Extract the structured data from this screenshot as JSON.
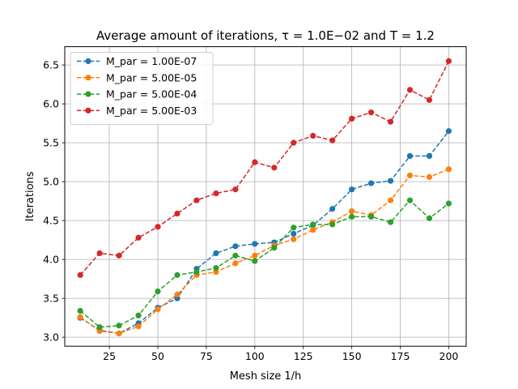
{
  "chart_data": {
    "type": "line",
    "title": "Average amount of iterations, τ = 1.0E−02 and T = 1.2",
    "xlabel": "Mesh size 1/h",
    "ylabel": "Iterations",
    "xlim": [
      2,
      209
    ],
    "ylim": [
      2.885,
      6.735
    ],
    "xticks": [
      25,
      50,
      75,
      100,
      125,
      150,
      175,
      200
    ],
    "yticks": [
      3.0,
      3.5,
      4.0,
      4.5,
      5.0,
      5.5,
      6.0,
      6.5
    ],
    "grid": true,
    "legend_position": "top-left",
    "x": [
      10,
      20,
      30,
      40,
      50,
      60,
      70,
      80,
      90,
      100,
      110,
      120,
      130,
      140,
      150,
      160,
      170,
      180,
      190,
      200
    ],
    "series": [
      {
        "name": "M_par = 1.00E-07",
        "color": "#1f77b4",
        "values": [
          3.25,
          3.09,
          3.05,
          3.18,
          3.38,
          3.5,
          3.88,
          4.08,
          4.17,
          4.2,
          4.22,
          4.33,
          4.44,
          4.65,
          4.9,
          4.98,
          5.01,
          5.33,
          5.33,
          5.65
        ]
      },
      {
        "name": "M_par = 5.00E-05",
        "color": "#ff7f0e",
        "values": [
          3.26,
          3.08,
          3.05,
          3.14,
          3.36,
          3.55,
          3.8,
          3.84,
          3.95,
          4.05,
          4.18,
          4.26,
          4.38,
          4.48,
          4.62,
          4.57,
          4.76,
          5.08,
          5.06,
          5.16
        ]
      },
      {
        "name": "M_par = 5.00E-04",
        "color": "#2ca02c",
        "values": [
          3.34,
          3.13,
          3.15,
          3.28,
          3.59,
          3.8,
          3.84,
          3.89,
          4.05,
          3.98,
          4.15,
          4.41,
          4.45,
          4.45,
          4.55,
          4.55,
          4.48,
          4.76,
          4.53,
          4.72
        ]
      },
      {
        "name": "M_par = 5.00E-03",
        "color": "#d62728",
        "values": [
          3.8,
          4.08,
          4.05,
          4.28,
          4.42,
          4.59,
          4.76,
          4.85,
          4.9,
          5.25,
          5.18,
          5.5,
          5.59,
          5.53,
          5.81,
          5.89,
          5.77,
          6.18,
          6.05,
          6.55
        ]
      }
    ]
  }
}
